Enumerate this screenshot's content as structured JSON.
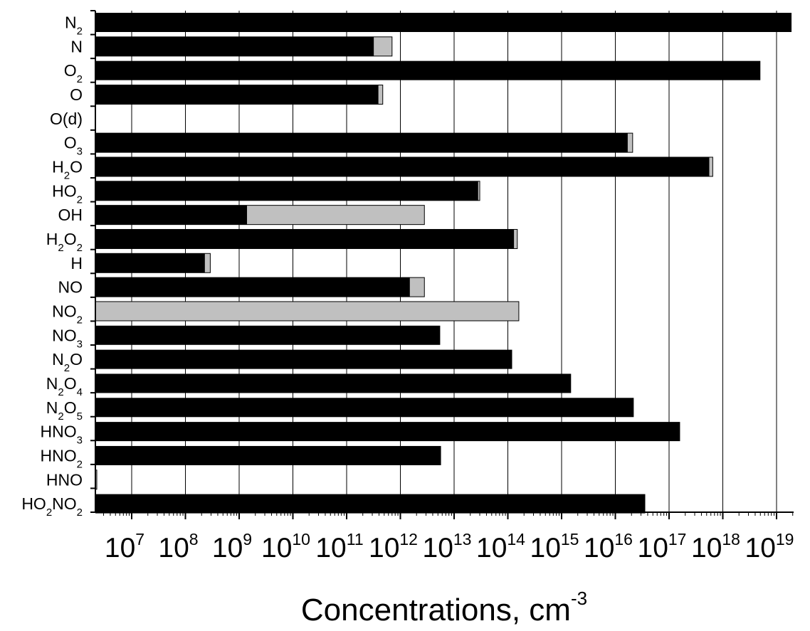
{
  "chart_data": {
    "type": "bar",
    "orientation": "horizontal",
    "xscale": "log",
    "xlim": [
      1000000,
      20000000000000000000
    ],
    "xlabel": "Concentrations, cm",
    "xlabel_exponent": "-3",
    "grid": "vertical",
    "colors": {
      "primary": "#000000",
      "secondary": "#c0c0c0"
    },
    "x_ticks": [
      {
        "base": "10",
        "exp": "7",
        "value": 10000000
      },
      {
        "base": "10",
        "exp": "8",
        "value": 100000000
      },
      {
        "base": "10",
        "exp": "9",
        "value": 1000000000
      },
      {
        "base": "10",
        "exp": "10",
        "value": 10000000000
      },
      {
        "base": "10",
        "exp": "11",
        "value": 100000000000
      },
      {
        "base": "10",
        "exp": "12",
        "value": 1000000000000
      },
      {
        "base": "10",
        "exp": "13",
        "value": 10000000000000
      },
      {
        "base": "10",
        "exp": "14",
        "value": 100000000000000
      },
      {
        "base": "10",
        "exp": "15",
        "value": 1000000000000000
      },
      {
        "base": "10",
        "exp": "16",
        "value": 10000000000000000
      },
      {
        "base": "10",
        "exp": "17",
        "value": 100000000000000000
      },
      {
        "base": "10",
        "exp": "18",
        "value": 1000000000000000000
      },
      {
        "base": "10",
        "exp": "19",
        "value": 10000000000000000000
      }
    ],
    "categories": [
      {
        "label": [
          [
            "N",
            ""
          ],
          [
            "2",
            "sub"
          ]
        ],
        "primary": 1.9e+19,
        "secondary": null
      },
      {
        "label": [
          [
            "N",
            ""
          ]
        ],
        "primary": 320000000000.0,
        "secondary": 700000000000.0
      },
      {
        "label": [
          [
            "O",
            ""
          ],
          [
            "2",
            "sub"
          ]
        ],
        "primary": 5e+18,
        "secondary": null
      },
      {
        "label": [
          [
            "O",
            ""
          ]
        ],
        "primary": 390000000000.0,
        "secondary": 470000000000.0
      },
      {
        "label": [
          [
            "O(d)",
            ""
          ]
        ],
        "primary": null,
        "secondary": null
      },
      {
        "label": [
          [
            "O",
            ""
          ],
          [
            "3",
            "sub"
          ]
        ],
        "primary": 1.7e+16,
        "secondary": 2.1e+16
      },
      {
        "label": [
          [
            "H",
            ""
          ],
          [
            "2",
            "sub"
          ],
          [
            "O",
            ""
          ]
        ],
        "primary": 5.6e+17,
        "secondary": 6.5e+17
      },
      {
        "label": [
          [
            "HO",
            ""
          ],
          [
            "2",
            "sub"
          ]
        ],
        "primary": 28000000000000.0,
        "secondary": 30000000000000.0
      },
      {
        "label": [
          [
            "OH",
            ""
          ]
        ],
        "primary": 1400000000.0,
        "secondary": 2800000000000.0
      },
      {
        "label": [
          [
            "H",
            ""
          ],
          [
            "2",
            "sub"
          ],
          [
            "O",
            ""
          ],
          [
            "2",
            "sub"
          ]
        ],
        "primary": 130000000000000.0,
        "secondary": 150000000000000.0
      },
      {
        "label": [
          [
            "H",
            ""
          ]
        ],
        "primary": 230000000.0,
        "secondary": 290000000.0
      },
      {
        "label": [
          [
            "NO",
            ""
          ]
        ],
        "primary": 1500000000000.0,
        "secondary": 2800000000000.0
      },
      {
        "label": [
          [
            "NO",
            ""
          ],
          [
            "2",
            "sub"
          ]
        ],
        "primary": null,
        "secondary": 160000000000000.0
      },
      {
        "label": [
          [
            "NO",
            ""
          ],
          [
            "3",
            "sub"
          ]
        ],
        "primary": 5500000000000.0,
        "secondary": null
      },
      {
        "label": [
          [
            "N",
            ""
          ],
          [
            "2",
            "sub"
          ],
          [
            "O",
            ""
          ]
        ],
        "primary": 120000000000000.0,
        "secondary": null
      },
      {
        "label": [
          [
            "N",
            ""
          ],
          [
            "2",
            "sub"
          ],
          [
            "O",
            ""
          ],
          [
            "4",
            "sub"
          ]
        ],
        "primary": 1500000000000000.0,
        "secondary": null
      },
      {
        "label": [
          [
            "N",
            ""
          ],
          [
            "2",
            "sub"
          ],
          [
            "O",
            ""
          ],
          [
            "5",
            "sub"
          ]
        ],
        "primary": 2.2e+16,
        "secondary": null
      },
      {
        "label": [
          [
            "HNO",
            ""
          ],
          [
            "3",
            "sub"
          ]
        ],
        "primary": 1.6e+17,
        "secondary": null
      },
      {
        "label": [
          [
            "HNO",
            ""
          ],
          [
            "2",
            "sub"
          ]
        ],
        "primary": 5700000000000.0,
        "secondary": null
      },
      {
        "label": [
          [
            "HNO",
            ""
          ]
        ],
        "primary": null,
        "secondary": 1300000.0
      },
      {
        "label": [
          [
            "HO",
            ""
          ],
          [
            "2",
            "sub"
          ],
          [
            "NO",
            ""
          ],
          [
            "2",
            "sub"
          ]
        ],
        "primary": 3.6e+16,
        "secondary": null
      }
    ]
  }
}
